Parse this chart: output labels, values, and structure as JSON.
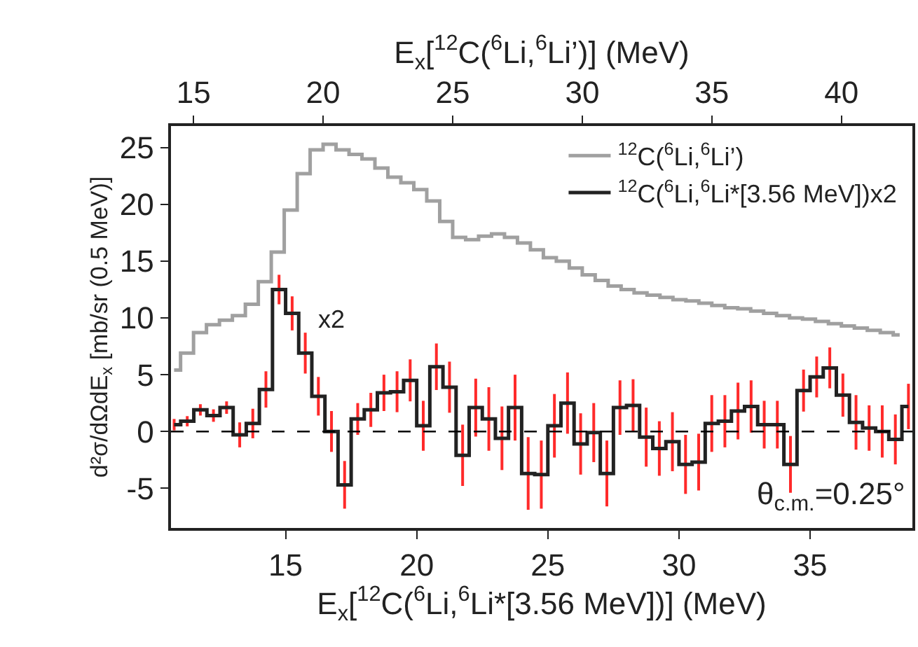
{
  "chart_data": {
    "type": "step",
    "xlabel": "E$_{x}$[$^{12}$C($^{6}$Li,$^{6}$Li*[3.56 MeV])] (MeV)",
    "x2label": "E$_{x}$[$^{12}$C($^{6}$Li,$^{6}$Li’)] (MeV)",
    "ylabel": "d²σ/dΩdE$_{x}$ [mb/sr (0.5 MeV)]",
    "xlim": [
      10.63,
      38.9
    ],
    "xticks": [
      15,
      20,
      25,
      30,
      35
    ],
    "x2lim": [
      14.13,
      42.74
    ],
    "x2ticks": [
      15,
      20,
      25,
      30,
      35,
      40
    ],
    "ylim": [
      -8.5,
      26.9
    ],
    "yticks": [
      -5,
      0,
      5,
      10,
      15,
      20,
      25
    ],
    "legend": "top right",
    "series": [
      {
        "name": "$^{12}$C($^{6}$Li,$^{6}$Li’)",
        "color": "#a0a0a0",
        "axis": "x2",
        "x": [
          14.25,
          14.75,
          15.25,
          15.75,
          16.25,
          16.75,
          17.25,
          17.75,
          18.25,
          18.75,
          19.25,
          19.75,
          20.25,
          20.75,
          21.25,
          21.75,
          22.25,
          22.75,
          23.25,
          23.75,
          24.25,
          24.75,
          25.25,
          25.75,
          26.25,
          26.75,
          27.25,
          27.75,
          28.25,
          28.75,
          29.25,
          29.75,
          30.25,
          30.75,
          31.25,
          31.75,
          32.25,
          32.75,
          33.25,
          33.75,
          34.25,
          34.75,
          35.25,
          35.75,
          36.25,
          36.75,
          37.25,
          37.75,
          38.25,
          38.75,
          39.25,
          39.75,
          40.25,
          40.75,
          41.25,
          41.75,
          42.25
        ],
        "values": [
          5.4,
          6.9,
          8.7,
          9.4,
          9.8,
          10.2,
          11.2,
          13.2,
          15.8,
          19.5,
          22.7,
          24.8,
          25.3,
          24.8,
          24.4,
          24.0,
          23.2,
          22.4,
          21.9,
          21.3,
          20.3,
          18.5,
          17.1,
          16.9,
          17.2,
          17.4,
          17.1,
          16.6,
          16.0,
          15.3,
          15.0,
          14.4,
          13.8,
          13.3,
          12.8,
          12.5,
          12.2,
          12.0,
          11.8,
          11.6,
          11.5,
          11.3,
          11.1,
          10.9,
          10.8,
          10.6,
          10.4,
          10.2,
          10.0,
          9.9,
          9.7,
          9.5,
          9.3,
          9.1,
          8.9,
          8.7,
          8.5
        ]
      },
      {
        "name": "$^{12}$C($^{6}$Li,$^{6}$Li*[3.56 MeV])x2",
        "color": "#222222",
        "x": [
          10.75,
          11.25,
          11.75,
          12.25,
          12.75,
          13.25,
          13.75,
          14.25,
          14.75,
          15.25,
          15.75,
          16.25,
          16.75,
          17.25,
          17.75,
          18.25,
          18.75,
          19.25,
          19.75,
          20.25,
          20.75,
          21.25,
          21.75,
          22.25,
          22.75,
          23.25,
          23.75,
          24.25,
          24.75,
          25.25,
          25.75,
          26.25,
          26.75,
          27.25,
          27.75,
          28.25,
          28.75,
          29.25,
          29.75,
          30.25,
          30.75,
          31.25,
          31.75,
          32.25,
          32.75,
          33.25,
          33.75,
          34.25,
          34.75,
          35.25,
          35.75,
          36.25,
          36.75,
          37.25,
          37.75,
          38.25,
          38.75
        ],
        "values": [
          0.6,
          0.9,
          1.9,
          1.4,
          2.1,
          -0.3,
          0.7,
          3.7,
          12.5,
          10.4,
          6.9,
          3.1,
          0.0,
          -4.7,
          1.1,
          1.9,
          3.4,
          3.5,
          4.5,
          0.5,
          5.7,
          3.9,
          -2.1,
          2.1,
          1.1,
          -0.6,
          2.1,
          -3.7,
          -3.8,
          0.5,
          2.5,
          -1.1,
          -0.1,
          -3.7,
          2.1,
          2.3,
          -0.5,
          -1.5,
          -0.9,
          -2.9,
          -2.7,
          0.7,
          0.9,
          1.8,
          2.2,
          0.6,
          0.6,
          -2.9,
          3.6,
          4.8,
          5.6,
          3.2,
          0.8,
          0.3,
          0.0,
          -0.7,
          2.2
        ],
        "errors": [
          0.5,
          0.45,
          0.5,
          0.55,
          0.55,
          1.1,
          1.3,
          1.6,
          1.3,
          1.5,
          1.8,
          1.7,
          1.8,
          2.1,
          1.4,
          1.5,
          1.6,
          1.8,
          1.85,
          2.2,
          2.05,
          2.25,
          2.7,
          2.55,
          2.8,
          2.8,
          2.9,
          3.2,
          3.0,
          2.8,
          2.7,
          2.7,
          2.6,
          2.9,
          2.4,
          2.3,
          2.6,
          2.4,
          2.6,
          2.6,
          2.5,
          2.5,
          2.3,
          2.5,
          2.3,
          2.1,
          2.1,
          2.5,
          1.85,
          1.8,
          1.8,
          1.9,
          2.4,
          2.0,
          2.3,
          2.2,
          2.0
        ]
      }
    ],
    "ref_lines": [
      {
        "axis": "y",
        "value": 0,
        "color": "#000000",
        "line_style": "dashed"
      }
    ],
    "annotations": [
      "x2",
      "θ$_{c.m.}$=0.25°"
    ]
  }
}
